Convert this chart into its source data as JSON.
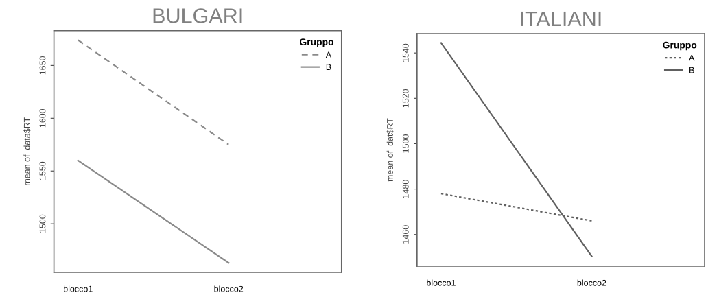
{
  "chart_data": [
    {
      "type": "line",
      "title": "BULGARI",
      "ylabel": "mean of  data$RT",
      "categories": [
        "blocco1",
        "blocco2"
      ],
      "ylim": [
        1454,
        1683
      ],
      "yticks": [
        1500,
        1550,
        1600,
        1650
      ],
      "legend": "top right",
      "legend_title": "Gruppo",
      "grid": false,
      "series": [
        {
          "name": "A",
          "color": "#8a8a8a",
          "line_style": "dashed",
          "values": [
            1674,
            1575
          ]
        },
        {
          "name": "B",
          "color": "#8a8a8a",
          "line_style": "solid",
          "values": [
            1560,
            1463
          ]
        }
      ]
    },
    {
      "type": "line",
      "title": "ITALIANI",
      "ylabel": "mean of  dat$RT",
      "categories": [
        "blocco1",
        "blocco2"
      ],
      "ylim": [
        1446,
        1548.5
      ],
      "yticks": [
        1460,
        1480,
        1500,
        1520,
        1540
      ],
      "legend": "top right",
      "legend_title": "Gruppo",
      "grid": false,
      "series": [
        {
          "name": "A",
          "color": "#606060",
          "line_style": "dotted",
          "values": [
            1478,
            1466
          ]
        },
        {
          "name": "B",
          "color": "#606060",
          "line_style": "solid",
          "values": [
            1544.4,
            1450.4
          ]
        }
      ]
    }
  ]
}
